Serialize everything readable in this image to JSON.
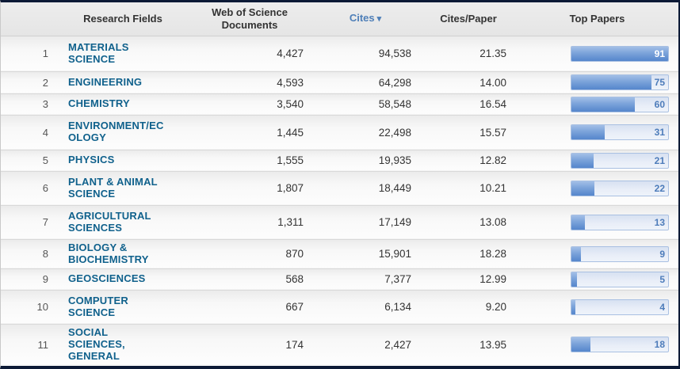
{
  "table": {
    "columns": [
      {
        "key": "rank",
        "label": ""
      },
      {
        "key": "field",
        "label": "Research Fields"
      },
      {
        "key": "docs",
        "label": "Web of Science Documents"
      },
      {
        "key": "cites",
        "label": "Cites",
        "sorted": true,
        "sort_indicator": "▾"
      },
      {
        "key": "cpp",
        "label": "Cites/Paper"
      },
      {
        "key": "top_papers",
        "label": "Top Papers"
      }
    ],
    "bar_max": 91,
    "rows": [
      {
        "rank": 1,
        "field": "MATERIALS SCIENCE",
        "docs": "4,427",
        "cites": "94,538",
        "cpp": "21.35",
        "top_papers": 91
      },
      {
        "rank": 2,
        "field": "ENGINEERING",
        "docs": "4,593",
        "cites": "64,298",
        "cpp": "14.00",
        "top_papers": 75
      },
      {
        "rank": 3,
        "field": "CHEMISTRY",
        "docs": "3,540",
        "cites": "58,548",
        "cpp": "16.54",
        "top_papers": 60
      },
      {
        "rank": 4,
        "field": "ENVIRONMENT/ECOLOGY",
        "docs": "1,445",
        "cites": "22,498",
        "cpp": "15.57",
        "top_papers": 31
      },
      {
        "rank": 5,
        "field": "PHYSICS",
        "docs": "1,555",
        "cites": "19,935",
        "cpp": "12.82",
        "top_papers": 21
      },
      {
        "rank": 6,
        "field": "PLANT & ANIMAL SCIENCE",
        "docs": "1,807",
        "cites": "18,449",
        "cpp": "10.21",
        "top_papers": 22
      },
      {
        "rank": 7,
        "field": "AGRICULTURAL SCIENCES",
        "docs": "1,311",
        "cites": "17,149",
        "cpp": "13.08",
        "top_papers": 13
      },
      {
        "rank": 8,
        "field": "BIOLOGY & BIOCHEMISTRY",
        "docs": "870",
        "cites": "15,901",
        "cpp": "18.28",
        "top_papers": 9
      },
      {
        "rank": 9,
        "field": "GEOSCIENCES",
        "docs": "568",
        "cites": "7,377",
        "cpp": "12.99",
        "top_papers": 5
      },
      {
        "rank": 10,
        "field": "COMPUTER SCIENCE",
        "docs": "667",
        "cites": "6,134",
        "cpp": "9.20",
        "top_papers": 4
      },
      {
        "rank": 11,
        "field": "SOCIAL SCIENCES, GENERAL",
        "docs": "174",
        "cites": "2,427",
        "cpp": "13.95",
        "top_papers": 18
      }
    ]
  },
  "chart_data": {
    "type": "bar",
    "title": "Top Papers",
    "categories": [
      "MATERIALS SCIENCE",
      "ENGINEERING",
      "CHEMISTRY",
      "ENVIRONMENT/ECOLOGY",
      "PHYSICS",
      "PLANT & ANIMAL SCIENCE",
      "AGRICULTURAL SCIENCES",
      "BIOLOGY & BIOCHEMISTRY",
      "GEOSCIENCES",
      "COMPUTER SCIENCE",
      "SOCIAL SCIENCES, GENERAL"
    ],
    "values": [
      91,
      75,
      60,
      31,
      21,
      22,
      13,
      9,
      5,
      4,
      18
    ],
    "xlabel": "",
    "ylabel": "Top Papers",
    "xlim": [
      0,
      91
    ],
    "orientation": "horizontal",
    "legend": false,
    "grid": false
  },
  "colors": {
    "field_link": "#10618c",
    "sorted_header": "#4e7fb8",
    "header_text": "#333333",
    "bar_fill": "#5586cc",
    "bar_track": "#e9eef8",
    "bar_border": "#a9c0e2",
    "bar_value_on_track": "#4d7cba",
    "bar_value_on_fill": "#ffffff",
    "frame_border": "#0c1a36"
  }
}
